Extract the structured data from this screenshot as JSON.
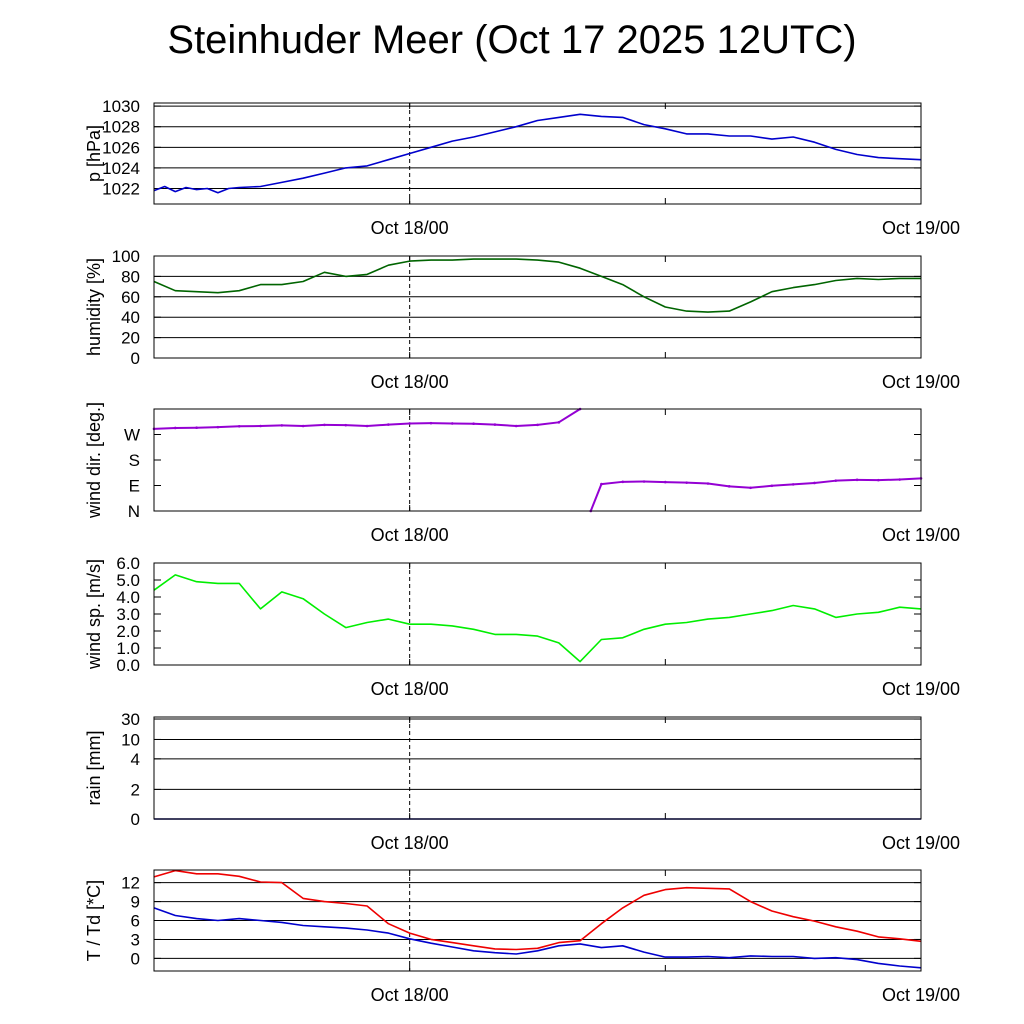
{
  "title": "Steinhuder Meer (Oct 17 2025 12UTC)",
  "x_axis": {
    "range_hours": [
      0,
      36
    ],
    "ticks": [
      {
        "hour": 12,
        "label": "Oct 18/00"
      },
      {
        "hour": 36,
        "label": "Oct 19/00"
      }
    ],
    "minor_ticks_hours": [
      12,
      24
    ],
    "dashed_marker_hour": 12
  },
  "chart_data": [
    {
      "id": "pressure",
      "type": "line",
      "ylabel": "p [hPa]",
      "ylim": [
        1020.5,
        1030.3
      ],
      "ticks": [
        1022,
        1024,
        1026,
        1028,
        1030
      ],
      "tick_labels": [
        "1022",
        "1024",
        "1026",
        "1028",
        "1030"
      ],
      "grid": [
        1022,
        1024,
        1026,
        1028,
        1030
      ],
      "series": [
        {
          "name": "pressure",
          "color": "#0000cc",
          "x": [
            0,
            0.5,
            1,
            1.5,
            2,
            2.5,
            3,
            3.5,
            4,
            5,
            6,
            7,
            8,
            9,
            10,
            11,
            12,
            13,
            14,
            15,
            16,
            17,
            18,
            19,
            20,
            21,
            22,
            23,
            24,
            25,
            26,
            27,
            28,
            29,
            30,
            31,
            32,
            33,
            34,
            35,
            36
          ],
          "y": [
            1021.8,
            1022.2,
            1021.7,
            1022.1,
            1021.9,
            1022.0,
            1021.6,
            1022.0,
            1022.1,
            1022.2,
            1022.6,
            1023.0,
            1023.5,
            1024.0,
            1024.2,
            1024.8,
            1025.4,
            1026.0,
            1026.6,
            1027.0,
            1027.5,
            1028.0,
            1028.6,
            1028.9,
            1029.2,
            1029.0,
            1028.9,
            1028.2,
            1027.8,
            1027.3,
            1027.3,
            1027.1,
            1027.1,
            1026.8,
            1027.0,
            1026.5,
            1025.8,
            1025.3,
            1025.0,
            1024.9,
            1024.8
          ]
        }
      ]
    },
    {
      "id": "humidity",
      "type": "line",
      "ylabel": "humidity [%]",
      "ylim": [
        0,
        100
      ],
      "ticks": [
        0,
        20,
        40,
        60,
        80,
        100
      ],
      "tick_labels": [
        "0",
        "20",
        "40",
        "60",
        "80",
        "100"
      ],
      "grid": [
        20,
        40,
        60,
        80
      ],
      "series": [
        {
          "name": "humidity",
          "color": "#006400",
          "x": [
            0,
            1,
            2,
            3,
            4,
            5,
            6,
            7,
            8,
            9,
            10,
            11,
            12,
            13,
            14,
            15,
            16,
            17,
            18,
            19,
            20,
            21,
            22,
            23,
            24,
            25,
            26,
            27,
            28,
            29,
            30,
            31,
            32,
            33,
            34,
            35,
            36
          ],
          "y": [
            75,
            66,
            65,
            64,
            66,
            72,
            72,
            75,
            84,
            80,
            82,
            91,
            95,
            96,
            96,
            97,
            97,
            97,
            96,
            94,
            88,
            80,
            72,
            60,
            50,
            46,
            45,
            46,
            55,
            65,
            69,
            72,
            76,
            78,
            77,
            78,
            78
          ]
        }
      ]
    },
    {
      "id": "wind_direction",
      "type": "scatter",
      "ylabel": "wind dir. [deg.]",
      "ylim": [
        0,
        360
      ],
      "ticks": [
        0,
        90,
        180,
        270
      ],
      "tick_labels": [
        "N",
        "E",
        "S",
        "W"
      ],
      "grid": [],
      "series": [
        {
          "name": "wind direction",
          "color": "#9400d3",
          "x": [
            0,
            1,
            2,
            3,
            4,
            5,
            6,
            7,
            8,
            9,
            10,
            11,
            12,
            13,
            14,
            15,
            16,
            17,
            18,
            19,
            20,
            20.5,
            21,
            22,
            23,
            24,
            25,
            26,
            27,
            28,
            29,
            30,
            31,
            32,
            33,
            34,
            35,
            36
          ],
          "y": [
            290,
            293,
            294,
            296,
            299,
            300,
            302,
            300,
            304,
            303,
            300,
            305,
            309,
            310,
            309,
            308,
            305,
            300,
            304,
            313,
            360,
            0,
            95,
            103,
            104,
            102,
            100,
            97,
            87,
            82,
            89,
            94,
            99,
            107,
            110,
            109,
            111,
            115
          ]
        }
      ]
    },
    {
      "id": "wind_speed",
      "type": "line",
      "ylabel": "wind sp. [m/s]",
      "ylim": [
        0,
        6
      ],
      "ticks": [
        0,
        1,
        2,
        3,
        4,
        5,
        6
      ],
      "tick_labels": [
        "0.0",
        "1.0",
        "2.0",
        "3.0",
        "4.0",
        "5.0",
        "6.0"
      ],
      "grid": [],
      "series": [
        {
          "name": "wind speed",
          "color": "#00ee00",
          "x": [
            0,
            1,
            2,
            3,
            4,
            5,
            6,
            7,
            8,
            9,
            10,
            11,
            12,
            13,
            14,
            15,
            16,
            17,
            18,
            19,
            20,
            21,
            22,
            23,
            24,
            25,
            26,
            27,
            28,
            29,
            30,
            31,
            32,
            33,
            34,
            35,
            36
          ],
          "y": [
            4.4,
            5.3,
            4.9,
            4.8,
            4.8,
            3.3,
            4.3,
            3.9,
            3.0,
            2.2,
            2.5,
            2.7,
            2.4,
            2.4,
            2.3,
            2.1,
            1.8,
            1.8,
            1.7,
            1.3,
            0.2,
            1.5,
            1.6,
            2.1,
            2.4,
            2.5,
            2.7,
            2.8,
            3.0,
            3.2,
            3.5,
            3.3,
            2.8,
            3.0,
            3.1,
            3.4,
            3.3
          ]
        }
      ]
    },
    {
      "id": "rain",
      "type": "line",
      "ylabel": "rain [mm]",
      "ylim": [
        0,
        30
      ],
      "ticks": [
        0,
        2,
        4,
        10,
        30
      ],
      "tick_labels": [
        "0",
        "2",
        "4",
        "10",
        "30"
      ],
      "grid": [
        2,
        4,
        10,
        30
      ],
      "series": [
        {
          "name": "rain",
          "color": "#000080",
          "x": [
            0,
            36
          ],
          "y": [
            0,
            0
          ]
        }
      ]
    },
    {
      "id": "temperature",
      "type": "line",
      "ylabel": "T / Td [*C]",
      "ylim": [
        -2,
        14
      ],
      "ticks": [
        0,
        3,
        6,
        9,
        12
      ],
      "tick_labels": [
        "0",
        "3",
        "6",
        "9",
        "12"
      ],
      "grid": [
        0,
        3,
        6,
        9,
        12
      ],
      "series": [
        {
          "name": "T",
          "color": "#ee0000",
          "x": [
            0,
            1,
            2,
            3,
            4,
            5,
            6,
            7,
            8,
            9,
            10,
            11,
            12,
            13,
            14,
            15,
            16,
            17,
            18,
            19,
            20,
            21,
            22,
            23,
            24,
            25,
            26,
            27,
            28,
            29,
            30,
            31,
            32,
            33,
            34,
            35,
            36
          ],
          "y": [
            12.9,
            13.9,
            13.4,
            13.4,
            13.0,
            12.1,
            12.0,
            9.5,
            9.0,
            8.7,
            8.3,
            5.5,
            4.0,
            3.0,
            2.5,
            2.0,
            1.5,
            1.4,
            1.6,
            2.5,
            2.8,
            5.5,
            8.0,
            10.0,
            10.9,
            11.2,
            11.1,
            11.0,
            9.0,
            7.5,
            6.6,
            5.9,
            5.0,
            4.3,
            3.4,
            3.1,
            2.7
          ]
        },
        {
          "name": "Td",
          "color": "#0000cc",
          "x": [
            0,
            1,
            2,
            3,
            4,
            5,
            6,
            7,
            8,
            9,
            10,
            11,
            12,
            13,
            14,
            15,
            16,
            17,
            18,
            19,
            20,
            21,
            22,
            23,
            24,
            25,
            26,
            27,
            28,
            29,
            30,
            31,
            32,
            33,
            34,
            35,
            36
          ],
          "y": [
            8.0,
            6.8,
            6.3,
            6.0,
            6.3,
            6.0,
            5.7,
            5.2,
            5.0,
            4.8,
            4.5,
            4.0,
            3.1,
            2.4,
            1.8,
            1.2,
            0.9,
            0.7,
            1.2,
            2.0,
            2.3,
            1.7,
            2.0,
            1.0,
            0.2,
            0.2,
            0.3,
            0.1,
            0.4,
            0.3,
            0.3,
            0.0,
            0.1,
            -0.2,
            -0.8,
            -1.2,
            -1.5
          ]
        }
      ]
    }
  ]
}
